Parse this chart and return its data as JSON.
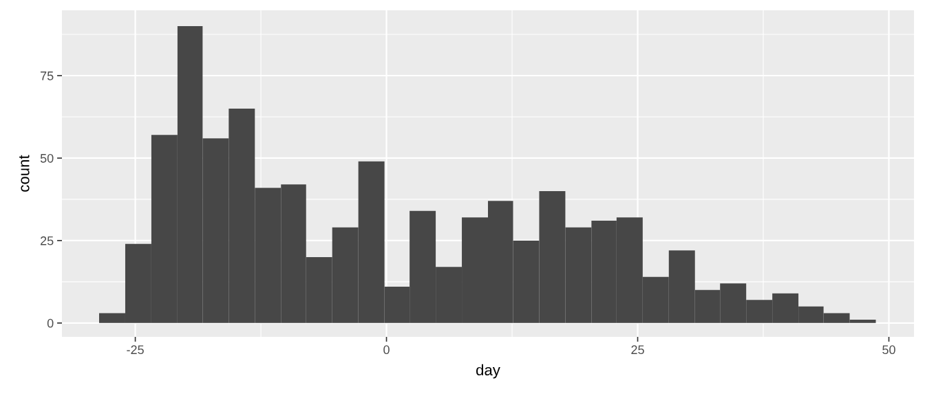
{
  "chart_data": {
    "type": "histogram",
    "xlabel": "day",
    "ylabel": "count",
    "bins": [
      -28.6,
      -26.0,
      -23.4,
      -20.8,
      -18.3,
      -15.7,
      -13.1,
      -10.5,
      -8.0,
      -5.4,
      -2.8,
      -0.2,
      2.3,
      4.9,
      7.5,
      10.1,
      12.6,
      15.2,
      17.8,
      20.4,
      22.9,
      25.5,
      28.1,
      30.7,
      33.2,
      35.8,
      38.4,
      41.0,
      43.5,
      46.1,
      48.7
    ],
    "values": [
      3,
      24,
      57,
      90,
      56,
      65,
      41,
      42,
      20,
      29,
      49,
      11,
      34,
      17,
      32,
      37,
      25,
      40,
      29,
      31,
      32,
      14,
      22,
      10,
      12,
      7,
      9,
      5,
      3,
      1
    ],
    "color": "#474747",
    "xlim": [
      -32.3,
      52.5
    ],
    "ylim": [
      -4.2,
      94.8
    ],
    "xticks": [
      {
        "value": -25,
        "label": "-25"
      },
      0,
      25,
      50
    ],
    "yticks": [
      0,
      25,
      50,
      75
    ],
    "grid": true
  }
}
